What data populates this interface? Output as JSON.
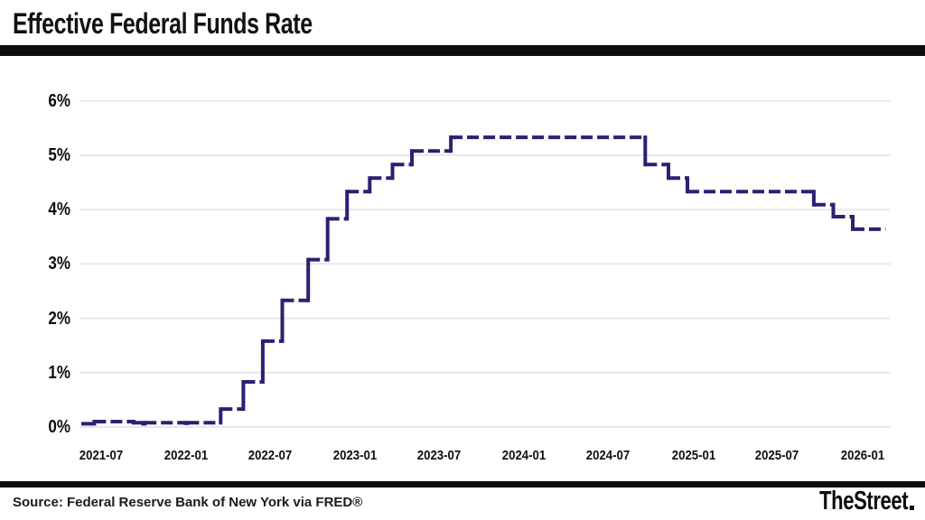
{
  "header": {
    "title": "Effective Federal Funds Rate"
  },
  "footer": {
    "source": "Source: Federal Reserve Bank of New York via FRED®",
    "logo_text": "TheStreet"
  },
  "chart_data": {
    "type": "line",
    "step": true,
    "line_style": "dashed",
    "title": "Effective Federal Funds Rate",
    "xlabel": "",
    "ylabel": "",
    "unit": "%",
    "ylim": [
      0,
      6
    ],
    "grid": "horizontal",
    "legend": "none",
    "colors": {
      "line": "#2a2172",
      "grid": "#e8e8e8",
      "text": "#111111",
      "divider": "#0d0d0d"
    },
    "y_ticks": [
      {
        "value": 0,
        "label": "0%"
      },
      {
        "value": 1,
        "label": "1%"
      },
      {
        "value": 2,
        "label": "2%"
      },
      {
        "value": 3,
        "label": "3%"
      },
      {
        "value": 4,
        "label": "4%"
      },
      {
        "value": 5,
        "label": "5%"
      },
      {
        "value": 6,
        "label": "6%"
      }
    ],
    "x_domain": [
      "2021-05-20",
      "2026-03-01"
    ],
    "x_ticks": [
      {
        "date": "2021-07-01",
        "label": "2021-07"
      },
      {
        "date": "2022-01-01",
        "label": "2022-01"
      },
      {
        "date": "2022-07-01",
        "label": "2022-07"
      },
      {
        "date": "2023-01-01",
        "label": "2023-01"
      },
      {
        "date": "2023-07-01",
        "label": "2023-07"
      },
      {
        "date": "2024-01-01",
        "label": "2024-01"
      },
      {
        "date": "2024-07-01",
        "label": "2024-07"
      },
      {
        "date": "2025-01-01",
        "label": "2025-01"
      },
      {
        "date": "2025-07-01",
        "label": "2025-07"
      },
      {
        "date": "2026-01-01",
        "label": "2026-01"
      }
    ],
    "series": [
      {
        "name": "Effective Federal Funds Rate",
        "points": [
          [
            "2021-05-20",
            0.06
          ],
          [
            "2021-06-17",
            0.1
          ],
          [
            "2021-09-10",
            0.08
          ],
          [
            "2021-09-30",
            0.06
          ],
          [
            "2021-10-04",
            0.08
          ],
          [
            "2021-12-31",
            0.07
          ],
          [
            "2022-01-04",
            0.08
          ],
          [
            "2022-03-17",
            0.33
          ],
          [
            "2022-05-05",
            0.83
          ],
          [
            "2022-06-16",
            1.58
          ],
          [
            "2022-07-28",
            2.33
          ],
          [
            "2022-09-22",
            3.08
          ],
          [
            "2022-11-03",
            3.83
          ],
          [
            "2022-12-15",
            4.33
          ],
          [
            "2023-02-02",
            4.58
          ],
          [
            "2023-03-23",
            4.83
          ],
          [
            "2023-05-04",
            5.08
          ],
          [
            "2023-07-27",
            5.33
          ],
          [
            "2024-09-19",
            4.83
          ],
          [
            "2024-11-08",
            4.58
          ],
          [
            "2024-12-19",
            4.33
          ],
          [
            "2025-09-18",
            4.09
          ],
          [
            "2025-10-30",
            3.87
          ],
          [
            "2025-12-11",
            3.64
          ],
          [
            "2026-02-20",
            3.64
          ]
        ]
      }
    ]
  }
}
